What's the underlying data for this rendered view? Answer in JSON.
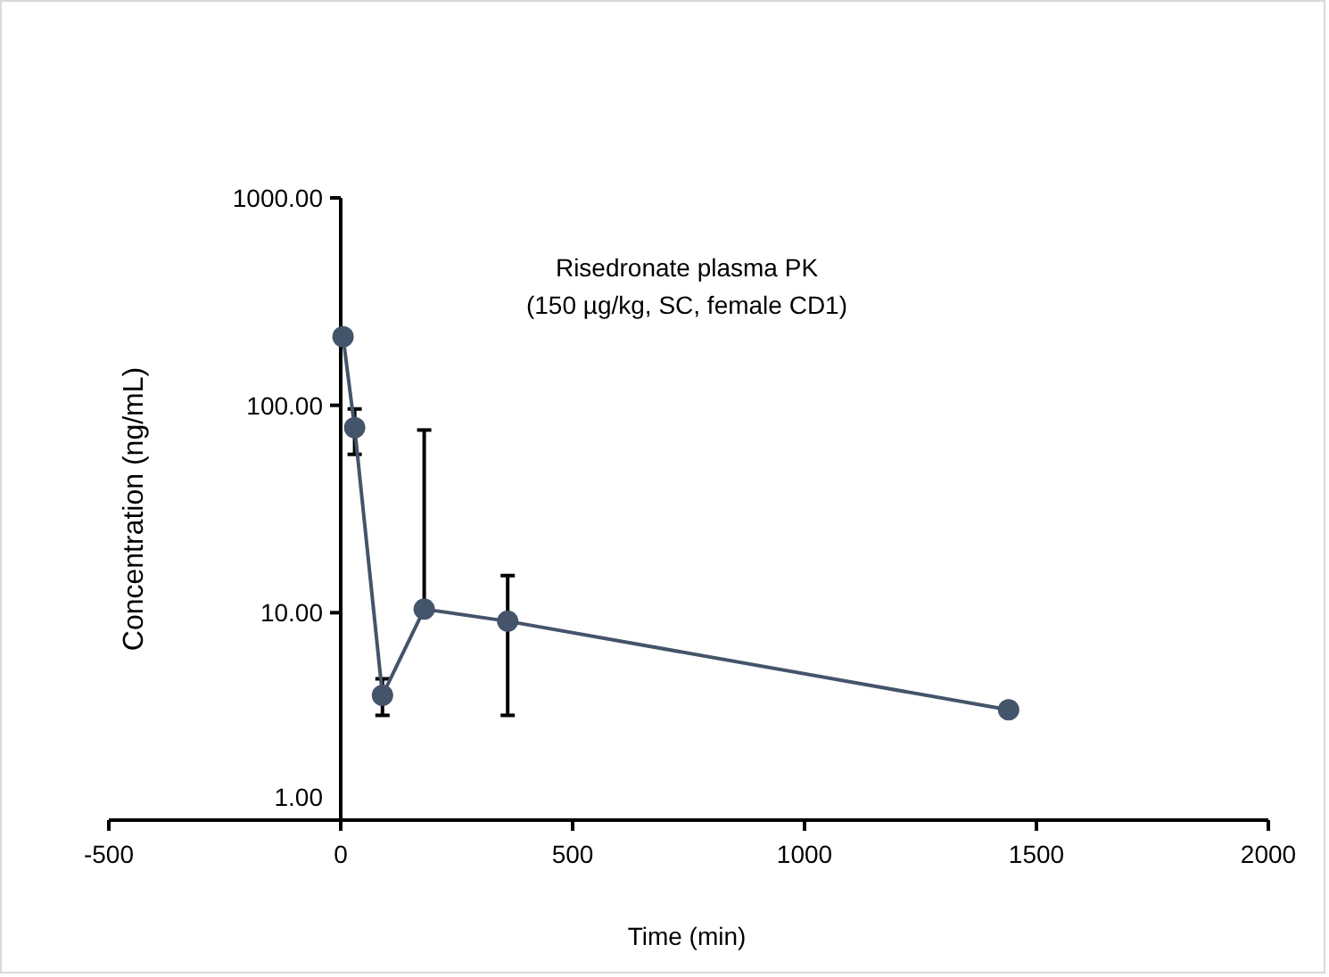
{
  "chart_data": {
    "type": "line",
    "title": "Risedronate plasma PK",
    "subtitle": "(150 µg/kg, SC, female CD1)",
    "xlabel": "Time (min)",
    "ylabel": "Concentration (ng/mL)",
    "x": [
      5,
      30,
      90,
      180,
      360,
      1440
    ],
    "series": [
      {
        "color": "#44546a",
        "values": [
          214,
          78,
          4.0,
          10.4,
          9.1,
          3.4
        ],
        "errors": [
          null,
          [
            58,
            96
          ],
          [
            3.2,
            4.8
          ],
          [
            10.4,
            76
          ],
          [
            3.2,
            15.1
          ],
          null
        ]
      }
    ],
    "log": "y",
    "marker": "circle",
    "grid": false,
    "xlim": [
      -500,
      2000
    ],
    "xticks": [
      -500,
      0,
      500,
      1000,
      1500,
      2000
    ],
    "ylim": [
      1,
      1000
    ],
    "yticks": [
      {
        "value": 1,
        "label": "1.00"
      },
      {
        "value": 10,
        "label": "10.00"
      },
      {
        "value": 100,
        "label": "100.00"
      },
      {
        "value": 1000,
        "label": "1000.00"
      }
    ]
  }
}
